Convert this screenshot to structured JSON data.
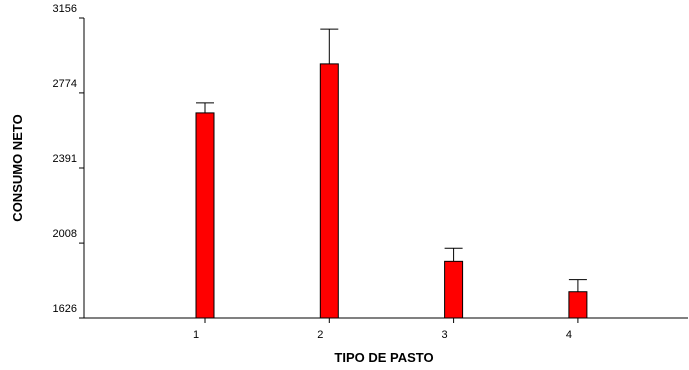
{
  "chart_data": {
    "type": "bar",
    "xlabel": "TIPO DE PASTO",
    "ylabel": "CONSUMO NETO",
    "categories": [
      "1",
      "2",
      "3",
      "4"
    ],
    "values": [
      2672,
      2922,
      1915,
      1760
    ],
    "error_upper": [
      2723,
      3099,
      1982,
      1822
    ],
    "ylim": [
      1626,
      3156
    ],
    "yticks": [
      "1626",
      "2008",
      "2391",
      "2774",
      "3156"
    ],
    "bar_color": "#ff0000",
    "grid": false,
    "legend": "none"
  }
}
